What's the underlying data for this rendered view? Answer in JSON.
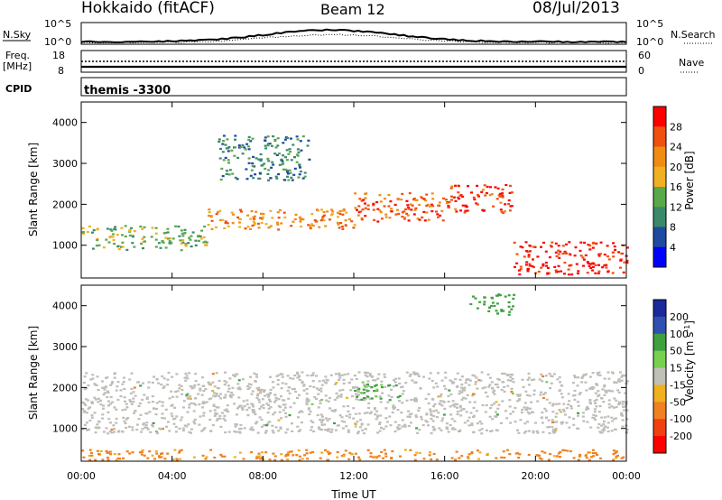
{
  "header": {
    "station": "Hokkaido (fitACF)",
    "beam": "Beam 12",
    "date": "08/Jul/2013"
  },
  "nsky_panel": {
    "left_label": "N.Sky",
    "right_label": "N.Search",
    "tick_top": "10^5",
    "tick_bottom": "10^0"
  },
  "freq_panel": {
    "left_label_1": "Freq.",
    "left_label_2": "[MHz]",
    "right_label": "Nave",
    "left_tick_top": "18",
    "left_tick_bottom": "8",
    "right_tick_top": "60",
    "right_tick_bottom": "0"
  },
  "cpid_panel": {
    "left_label": "CPID",
    "program": "themis -3300"
  },
  "colors": {
    "power_scale": [
      "#0000ff",
      "#1e4aa0",
      "#3a8a6a",
      "#5aa84a",
      "#f0b020",
      "#f08c14",
      "#f05010",
      "#ff0000"
    ],
    "velocity_scale": [
      "#1a2a9a",
      "#3050b0",
      "#40a040",
      "#78d050",
      "#c0c0b8",
      "#f0b020",
      "#f08020",
      "#f04010",
      "#ff0000"
    ],
    "ground_scatter": "#bebdb8"
  },
  "chart_data": [
    {
      "type": "heatmap",
      "name": "power",
      "xlabel": "",
      "ylabel": "Slant Range [km]",
      "x_ticks": [
        "00:00",
        "04:00",
        "08:00",
        "12:00",
        "16:00",
        "20:00",
        "00:00"
      ],
      "x_range_hours": [
        0,
        24
      ],
      "y_ticks": [
        1000,
        2000,
        3000,
        4000
      ],
      "ylim": [
        200,
        4500
      ],
      "colorbar": {
        "label": "Power [dB]",
        "ticks": [
          4,
          8,
          12,
          16,
          20,
          24,
          28
        ],
        "range": [
          0,
          32
        ]
      },
      "regions": [
        {
          "hours": [
            0,
            5.5
          ],
          "range_km": [
            900,
            1500
          ],
          "level_db": 14
        },
        {
          "hours": [
            5.5,
            12
          ],
          "range_km": [
            1400,
            1900
          ],
          "level_db": 22
        },
        {
          "hours": [
            12,
            16
          ],
          "range_km": [
            1600,
            2300
          ],
          "level_db": 26
        },
        {
          "hours": [
            16,
            19
          ],
          "range_km": [
            1800,
            2500
          ],
          "level_db": 28
        },
        {
          "hours": [
            19,
            24
          ],
          "range_km": [
            300,
            1100
          ],
          "level_db": 30
        },
        {
          "hours": [
            6,
            10
          ],
          "range_km": [
            2600,
            3700
          ],
          "level_db": 10
        }
      ]
    },
    {
      "type": "heatmap",
      "name": "velocity",
      "xlabel": "Time UT",
      "ylabel": "Slant Range [km]",
      "x_ticks": [
        "00:00",
        "04:00",
        "08:00",
        "12:00",
        "16:00",
        "20:00",
        "00:00"
      ],
      "x_range_hours": [
        0,
        24
      ],
      "y_ticks": [
        1000,
        2000,
        3000,
        4000
      ],
      "ylim": [
        200,
        4500
      ],
      "colorbar": {
        "label": "Velocity [m s^-1]",
        "ticks": [
          200,
          100,
          50,
          15,
          -15,
          -50,
          -100,
          -200
        ],
        "range": [
          -250,
          250
        ]
      },
      "regions": [
        {
          "hours": [
            0,
            24
          ],
          "range_km": [
            900,
            2400
          ],
          "velocity": 0
        },
        {
          "hours": [
            12,
            14
          ],
          "range_km": [
            1700,
            2100
          ],
          "velocity": 60
        },
        {
          "hours": [
            17,
            19
          ],
          "range_km": [
            3800,
            4300
          ],
          "velocity": 70
        },
        {
          "hours": [
            0,
            24
          ],
          "range_km": [
            250,
            500
          ],
          "velocity": -60
        }
      ]
    }
  ]
}
